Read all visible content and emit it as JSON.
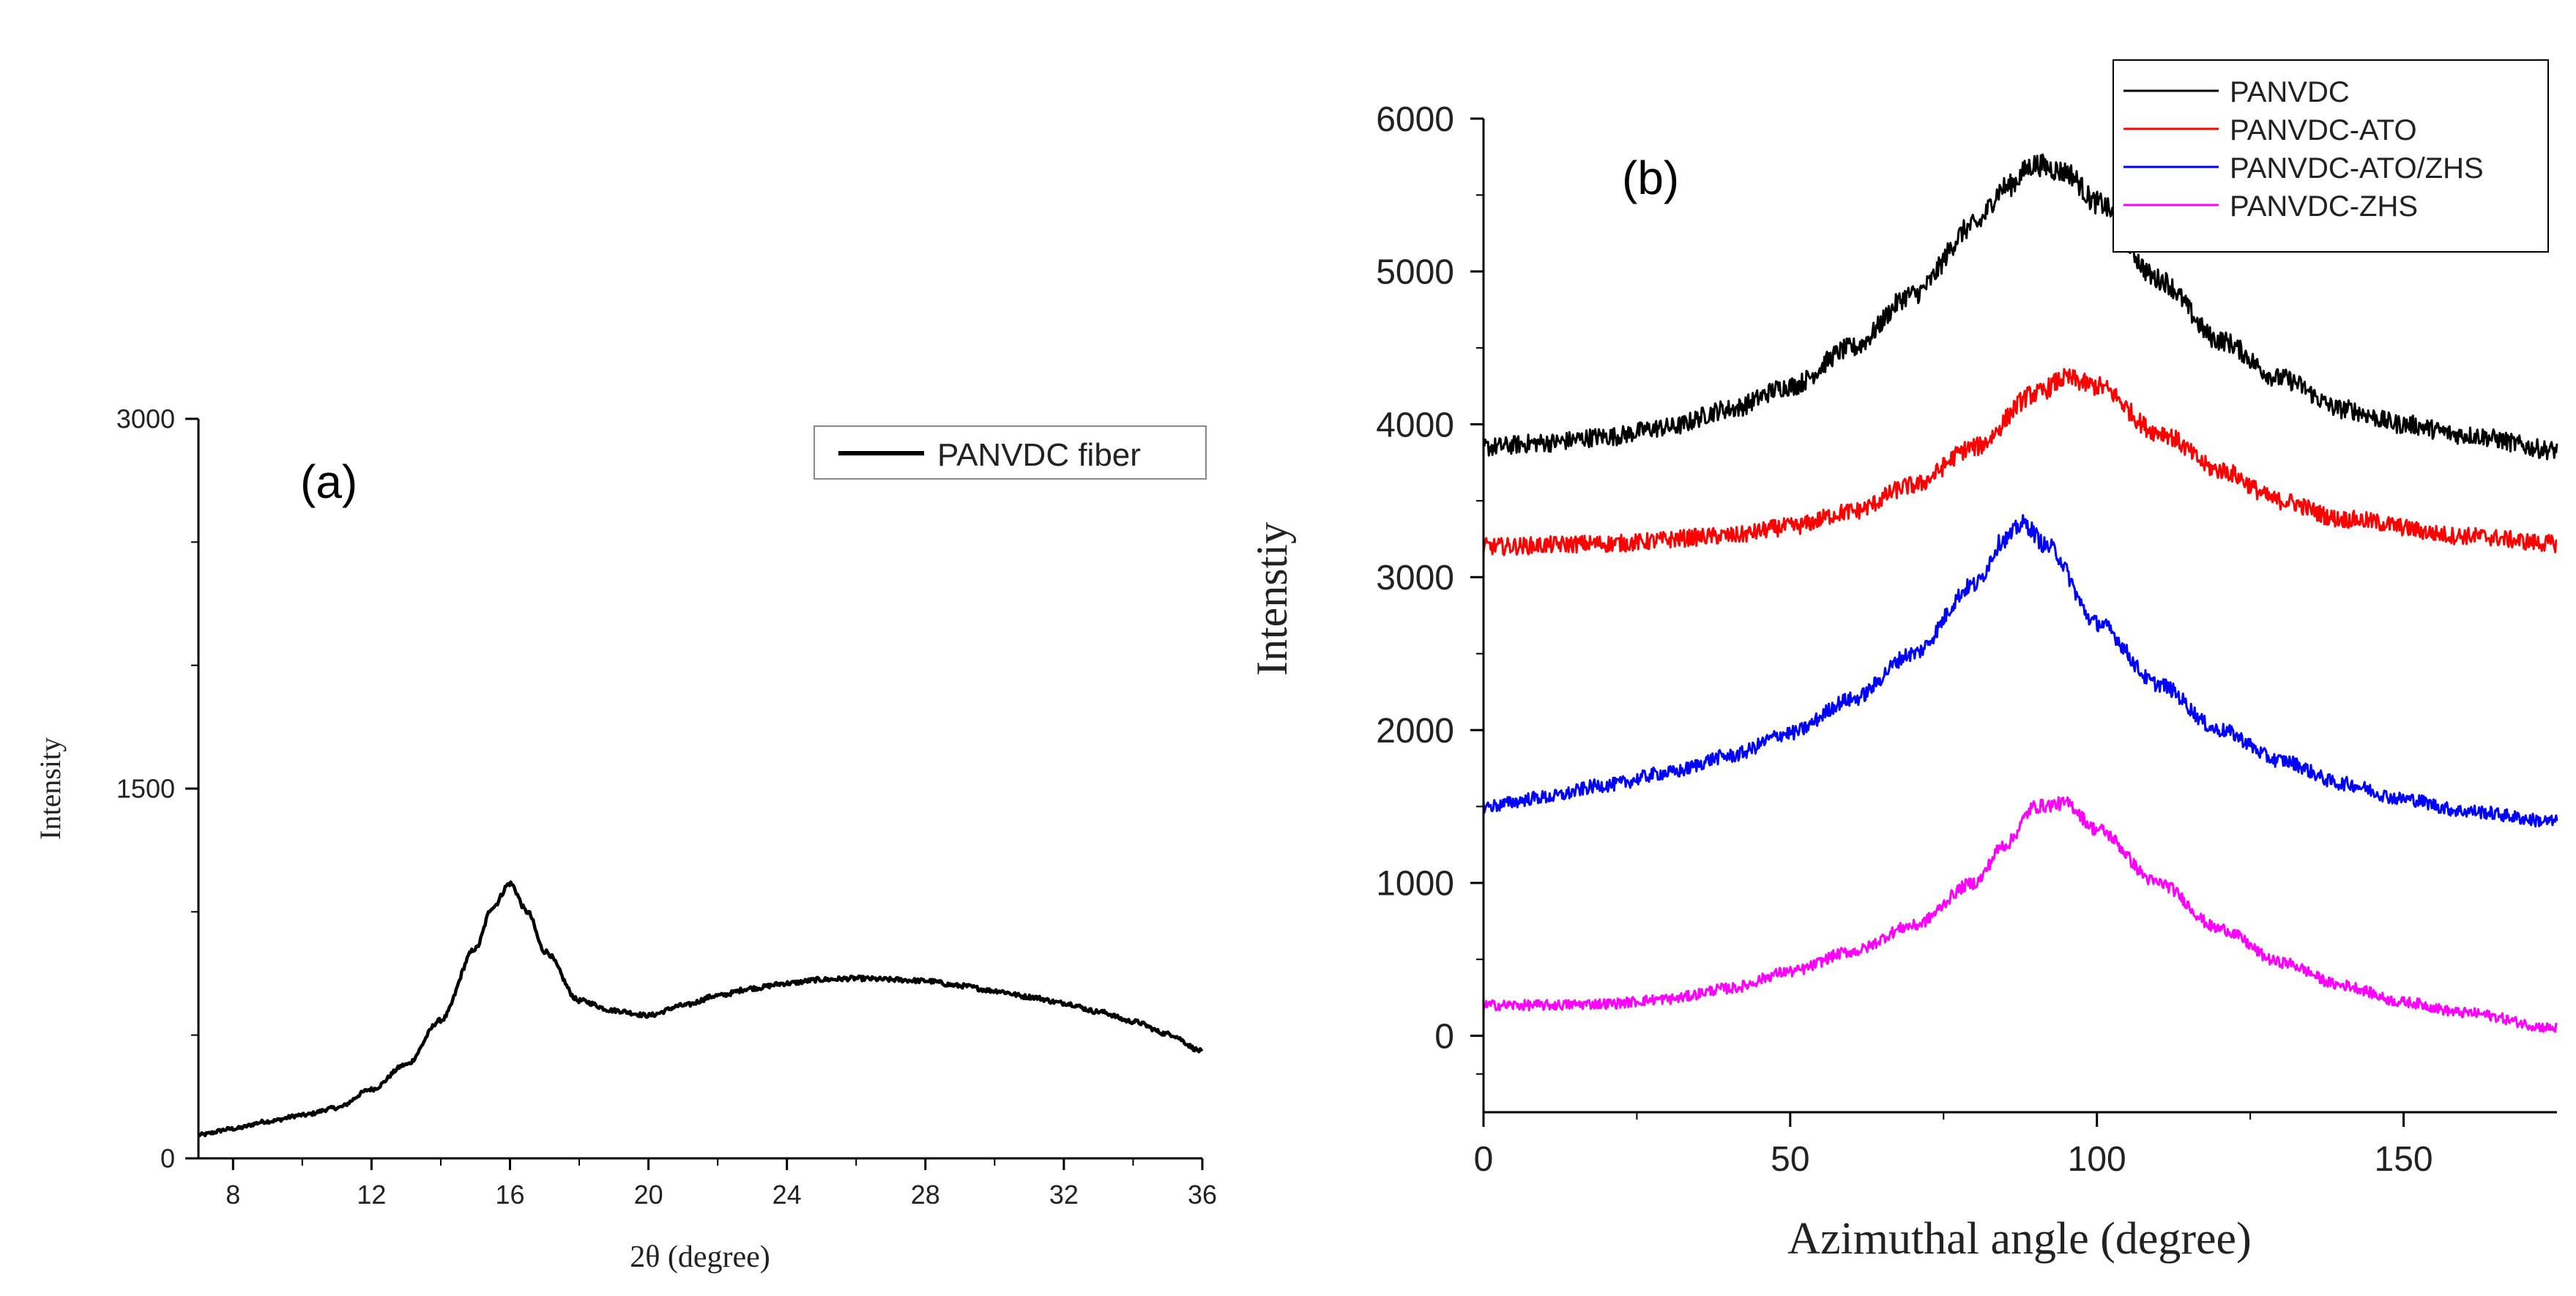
{
  "chart_data": [
    {
      "type": "line",
      "panel_label": "(a)",
      "title": "",
      "xlabel": "2θ (degree)",
      "ylabel": "Intensity",
      "xlim": [
        7,
        36
      ],
      "ylim": [
        0,
        3000
      ],
      "x_ticks": [
        8,
        12,
        16,
        20,
        24,
        28,
        32,
        36
      ],
      "y_ticks": [
        0,
        1500,
        3000
      ],
      "legend": {
        "position": "top-right",
        "boxed": true
      },
      "grid": false,
      "noise": 12,
      "series": [
        {
          "name": "PANVDC fiber",
          "color": "#000000",
          "x": [
            7,
            8,
            9,
            10,
            11,
            12,
            13,
            14,
            15,
            15.5,
            16,
            16.5,
            17,
            18,
            19,
            20,
            21,
            22,
            23,
            24,
            25,
            26,
            27,
            28,
            29,
            30,
            31,
            32,
            33,
            34,
            35,
            36
          ],
          "values": [
            95,
            120,
            150,
            175,
            205,
            280,
            380,
            560,
            850,
            1020,
            1115,
            1000,
            840,
            640,
            600,
            580,
            620,
            660,
            690,
            710,
            725,
            730,
            725,
            720,
            700,
            680,
            655,
            630,
            595,
            555,
            505,
            435
          ]
        }
      ]
    },
    {
      "type": "line",
      "panel_label": "(b)",
      "title": "",
      "xlabel": "Azimuthal angle (degree)",
      "ylabel": "Intenstiy",
      "xlim": [
        0,
        175
      ],
      "ylim": [
        -500,
        6000
      ],
      "x_ticks": [
        0,
        50,
        100,
        150
      ],
      "y_ticks": [
        0,
        1000,
        2000,
        3000,
        4000,
        5000,
        6000
      ],
      "legend": {
        "position": "top-right",
        "boxed": true
      },
      "grid": false,
      "noise": 55,
      "series": [
        {
          "name": "PANVDC",
          "color": "#000000",
          "x": [
            0,
            10,
            20,
            30,
            40,
            50,
            60,
            70,
            80,
            85,
            90,
            95,
            100,
            110,
            120,
            130,
            140,
            150,
            160,
            175
          ],
          "values": [
            3850,
            3880,
            3920,
            3980,
            4100,
            4250,
            4500,
            4850,
            5300,
            5550,
            5700,
            5650,
            5450,
            4950,
            4550,
            4300,
            4100,
            4000,
            3930,
            3830
          ]
        },
        {
          "name": "PANVDC-ATO",
          "color": "#ff0000",
          "x": [
            0,
            20,
            40,
            50,
            60,
            70,
            80,
            90,
            95,
            100,
            110,
            120,
            130,
            140,
            160,
            175
          ],
          "values": [
            3200,
            3220,
            3270,
            3330,
            3430,
            3600,
            3850,
            4200,
            4300,
            4250,
            3950,
            3700,
            3500,
            3380,
            3270,
            3220
          ]
        },
        {
          "name": "PANVDC-ATO/ZHS",
          "color": "#0000ff",
          "x": [
            0,
            10,
            20,
            30,
            40,
            50,
            60,
            70,
            80,
            85,
            88,
            92,
            100,
            110,
            120,
            130,
            140,
            150,
            160,
            175
          ],
          "values": [
            1500,
            1560,
            1640,
            1720,
            1830,
            1980,
            2200,
            2500,
            2950,
            3250,
            3350,
            3200,
            2700,
            2300,
            2000,
            1800,
            1650,
            1550,
            1470,
            1400
          ]
        },
        {
          "name": "PANVDC-ZHS",
          "color": "#ff00ff",
          "x": [
            0,
            10,
            20,
            30,
            40,
            50,
            60,
            70,
            80,
            85,
            90,
            95,
            100,
            110,
            120,
            130,
            140,
            150,
            160,
            175
          ],
          "values": [
            200,
            200,
            210,
            240,
            310,
            420,
            550,
            720,
            1000,
            1250,
            1500,
            1520,
            1350,
            1000,
            700,
            480,
            330,
            220,
            150,
            50
          ]
        }
      ]
    }
  ]
}
